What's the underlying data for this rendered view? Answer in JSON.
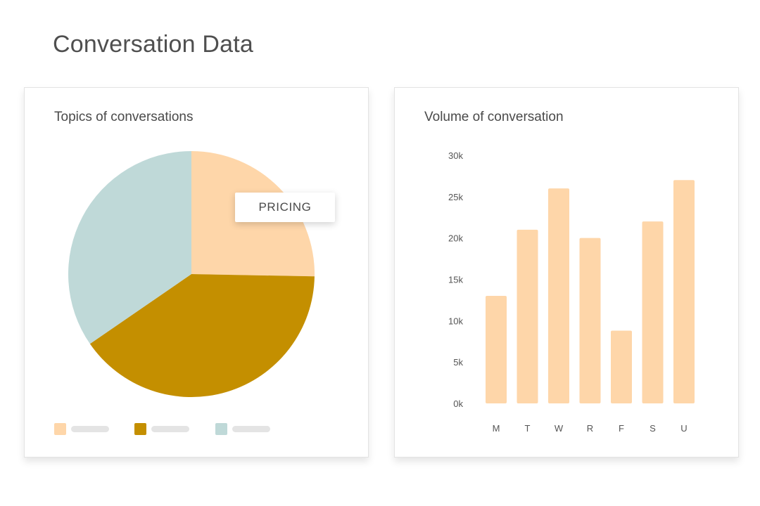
{
  "page": {
    "title": "Conversation Data"
  },
  "colors": {
    "peach": "#fed6a9",
    "teal": "#bfd9d8",
    "gold": "#c48f00",
    "placeholder": "#e4e4e4"
  },
  "pie_card": {
    "title": "Topics of conversations",
    "tooltip": "PRICING"
  },
  "bar_card": {
    "title": "Volume of conversation"
  },
  "chart_data": [
    {
      "type": "pie",
      "title": "Topics of conversations",
      "slices": [
        {
          "label": "Pricing",
          "value": 25.3,
          "color": "#fed6a9"
        },
        {
          "label": "",
          "value": 40.1,
          "color": "#c48f00"
        },
        {
          "label": "",
          "value": 34.6,
          "color": "#bfd9d8"
        }
      ],
      "legend": {
        "placement": "bottom",
        "entries": 3
      }
    },
    {
      "type": "bar",
      "title": "Volume of conversation",
      "categories": [
        "M",
        "T",
        "W",
        "R",
        "F",
        "S",
        "U"
      ],
      "values": [
        13000,
        21000,
        26000,
        20000,
        8800,
        22000,
        27000
      ],
      "yticks": [
        0,
        5000,
        10000,
        15000,
        20000,
        25000,
        30000
      ],
      "ytick_labels": [
        "0k",
        "5k",
        "10k",
        "15k",
        "20k",
        "25k",
        "30k"
      ],
      "ylim": [
        0,
        30000
      ],
      "xlabel": "",
      "ylabel": "",
      "grid": false,
      "color": "#fed6a9"
    }
  ]
}
